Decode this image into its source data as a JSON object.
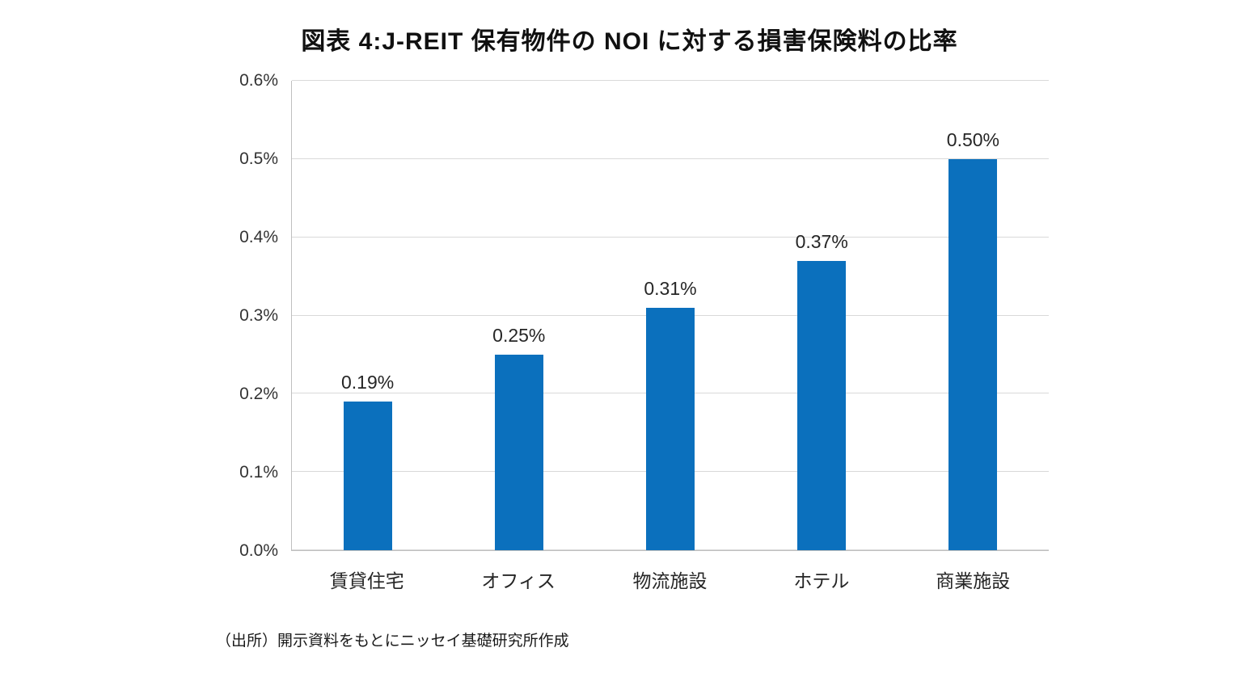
{
  "title": "図表 4:J-REIT 保有物件の NOI に対する損害保険料の比率",
  "source_note": "（出所）開示資料をもとにニッセイ基礎研究所作成",
  "chart_data": {
    "type": "bar",
    "categories": [
      "賃貸住宅",
      "オフィス",
      "物流施設",
      "ホテル",
      "商業施設"
    ],
    "values": [
      0.19,
      0.25,
      0.31,
      0.37,
      0.5
    ],
    "data_labels": [
      "0.19%",
      "0.25%",
      "0.31%",
      "0.37%",
      "0.50%"
    ],
    "title": "図表 4:J-REIT 保有物件の NOI に対する損害保険料の比率",
    "xlabel": "",
    "ylabel": "",
    "ylim": [
      0,
      0.6
    ],
    "ytick_step": 0.1,
    "ytick_labels": [
      "0.0%",
      "0.1%",
      "0.2%",
      "0.3%",
      "0.4%",
      "0.5%",
      "0.6%"
    ],
    "grid": true,
    "legend": false,
    "bar_color": "#0b70bd"
  },
  "colors": {
    "bar": "#0b70bd",
    "gridline": "#d9d9d9",
    "axis": "#bfbfbf",
    "text": "#262626"
  }
}
